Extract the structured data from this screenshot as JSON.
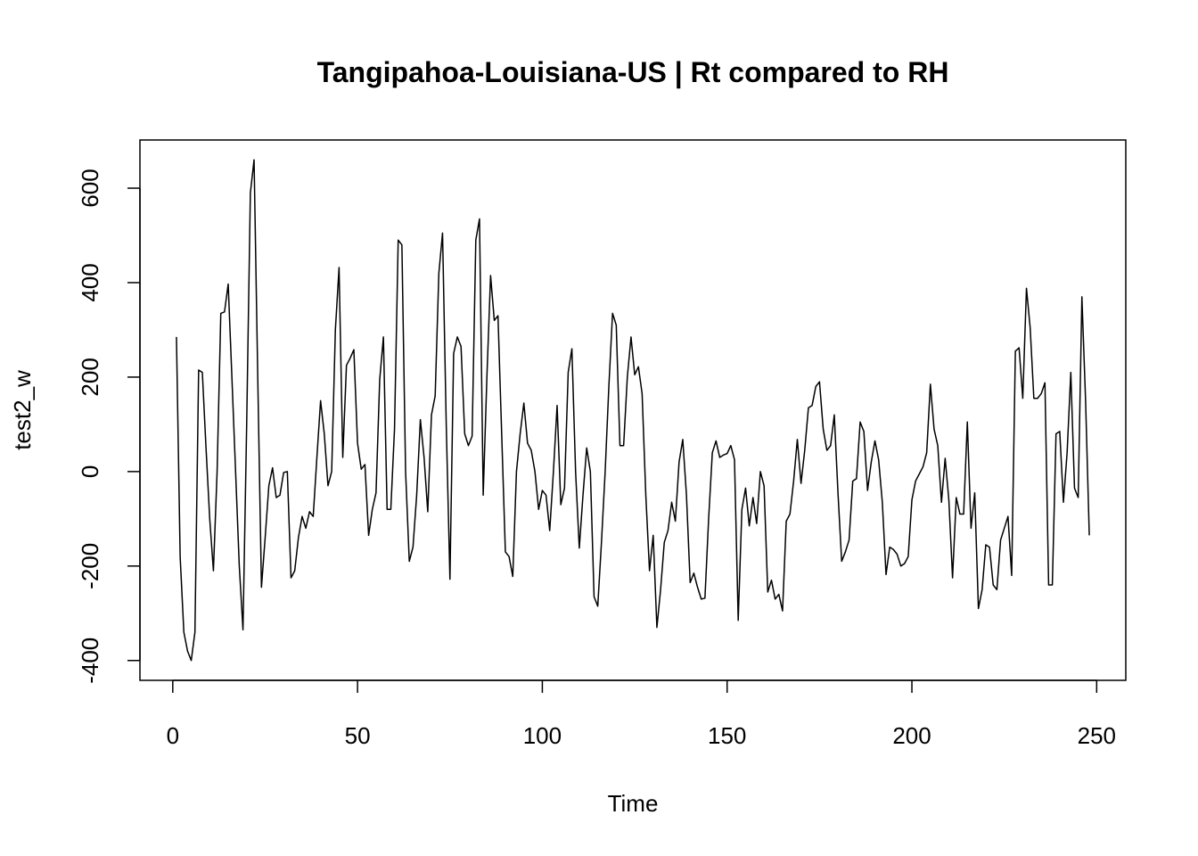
{
  "chart_data": {
    "type": "line",
    "title": "Tangipahoa-Louisiana-US | Rt compared to RH",
    "xlabel": "Time",
    "ylabel": "test2_w",
    "xlim": [
      -8.88,
      257.88
    ],
    "ylim": [
      -442,
      702
    ],
    "xticks": [
      0,
      50,
      100,
      150,
      200,
      250
    ],
    "yticks": [
      -400,
      -200,
      0,
      200,
      400,
      600
    ],
    "color": "#000000",
    "x": [
      1,
      2,
      3,
      4,
      5,
      6,
      7,
      8,
      9,
      10,
      11,
      12,
      13,
      14,
      15,
      16,
      17,
      18,
      19,
      20,
      21,
      22,
      23,
      24,
      25,
      26,
      27,
      28,
      29,
      30,
      31,
      32,
      33,
      34,
      35,
      36,
      37,
      38,
      39,
      40,
      41,
      42,
      43,
      44,
      45,
      46,
      47,
      48,
      49,
      50,
      51,
      52,
      53,
      54,
      55,
      56,
      57,
      58,
      59,
      60,
      61,
      62,
      63,
      64,
      65,
      66,
      67,
      68,
      69,
      70,
      71,
      72,
      73,
      74,
      75,
      76,
      77,
      78,
      79,
      80,
      81,
      82,
      83,
      84,
      85,
      86,
      87,
      88,
      89,
      90,
      91,
      92,
      93,
      94,
      95,
      96,
      97,
      98,
      99,
      100,
      101,
      102,
      103,
      104,
      105,
      106,
      107,
      108,
      109,
      110,
      111,
      112,
      113,
      114,
      115,
      116,
      117,
      118,
      119,
      120,
      121,
      122,
      123,
      124,
      125,
      126,
      127,
      128,
      129,
      130,
      131,
      132,
      133,
      134,
      135,
      136,
      137,
      138,
      139,
      140,
      141,
      142,
      143,
      144,
      145,
      146,
      147,
      148,
      149,
      150,
      151,
      152,
      153,
      154,
      155,
      156,
      157,
      158,
      159,
      160,
      161,
      162,
      163,
      164,
      165,
      166,
      167,
      168,
      169,
      170,
      171,
      172,
      173,
      174,
      175,
      176,
      177,
      178,
      179,
      180,
      181,
      182,
      183,
      184,
      185,
      186,
      187,
      188,
      189,
      190,
      191,
      192,
      193,
      194,
      195,
      196,
      197,
      198,
      199,
      200,
      201,
      202,
      203,
      204,
      205,
      206,
      207,
      208,
      209,
      210,
      211,
      212,
      213,
      214,
      215,
      216,
      217,
      218,
      219,
      220,
      221,
      222,
      223,
      224,
      225,
      226,
      227,
      228,
      229,
      230,
      231,
      232,
      233,
      234,
      235,
      236,
      237,
      238,
      239,
      240,
      241,
      242,
      243,
      244,
      245,
      246,
      247,
      248
    ],
    "values": [
      285,
      -180,
      -340,
      -380,
      -400,
      -340,
      215,
      210,
      50,
      -100,
      -210,
      0,
      335,
      338,
      397,
      200,
      0,
      -200,
      -335,
      100,
      590,
      660,
      200,
      -245,
      -140,
      -30,
      8,
      -55,
      -50,
      -2,
      0,
      -225,
      -210,
      -140,
      -95,
      -120,
      -85,
      -95,
      30,
      150,
      80,
      -30,
      0,
      300,
      432,
      30,
      225,
      240,
      258,
      60,
      5,
      15,
      -135,
      -80,
      -45,
      195,
      285,
      -80,
      -80,
      90,
      490,
      480,
      0,
      -190,
      -160,
      -50,
      110,
      30,
      -85,
      120,
      160,
      420,
      505,
      100,
      -228,
      250,
      285,
      265,
      80,
      55,
      75,
      490,
      535,
      -50,
      200,
      415,
      320,
      330,
      80,
      -170,
      -180,
      -222,
      0,
      80,
      145,
      60,
      45,
      0,
      -80,
      -40,
      -50,
      -125,
      0,
      140,
      -70,
      -35,
      210,
      260,
      0,
      -162,
      -50,
      50,
      0,
      -265,
      -285,
      -150,
      0,
      180,
      335,
      310,
      55,
      55,
      200,
      285,
      205,
      222,
      165,
      -50,
      -210,
      -135,
      -330,
      -250,
      -150,
      -125,
      -65,
      -105,
      20,
      68,
      -50,
      -235,
      -215,
      -245,
      -270,
      -268,
      -100,
      40,
      65,
      30,
      35,
      38,
      55,
      25,
      -315,
      -80,
      -35,
      -115,
      -55,
      -110,
      0,
      -30,
      -255,
      -230,
      -270,
      -260,
      -295,
      -105,
      -90,
      -20,
      68,
      -25,
      45,
      135,
      140,
      180,
      190,
      90,
      45,
      55,
      120,
      -45,
      -190,
      -170,
      -145,
      -20,
      -15,
      105,
      85,
      -40,
      20,
      65,
      25,
      -65,
      -218,
      -160,
      -165,
      -175,
      -200,
      -195,
      -180,
      -60,
      -20,
      -5,
      10,
      40,
      185,
      90,
      55,
      -65,
      28,
      -60,
      -225,
      -55,
      -90,
      -90,
      105,
      -120,
      -45,
      -290,
      -250,
      -155,
      -160,
      -240,
      -250,
      -145,
      -120,
      -95,
      -220,
      255,
      262,
      155,
      388,
      305,
      155,
      155,
      165,
      188,
      -240,
      -240,
      80,
      85,
      -65,
      40,
      210,
      -35,
      -55,
      370,
      150,
      -135
    ]
  }
}
